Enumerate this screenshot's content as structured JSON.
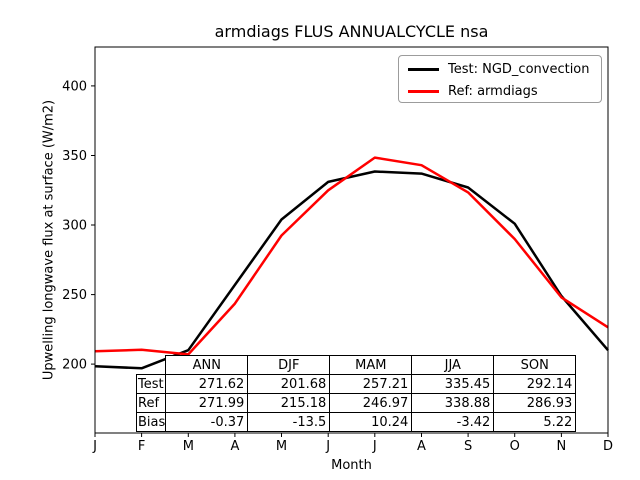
{
  "title": "armdiags FLUS ANNUALCYCLE nsa",
  "ylabel": "Upwelling longwave flux at surface (W/m2)",
  "xlabel": "Month",
  "legend": {
    "items": [
      {
        "label": "Test: NGD_convection",
        "color": "#000000"
      },
      {
        "label": "Ref: armdiags",
        "color": "#ff0000"
      }
    ]
  },
  "chart_data": {
    "type": "line",
    "title": "armdiags FLUS ANNUALCYCLE nsa",
    "xlabel": "Month",
    "ylabel": "Upwelling longwave flux at surface (W/m2)",
    "x_ticklabels": [
      "J",
      "F",
      "M",
      "A",
      "M",
      "J",
      "J",
      "A",
      "S",
      "O",
      "N",
      "D"
    ],
    "y_ticks": [
      200,
      250,
      300,
      350,
      400
    ],
    "ylim": [
      150.5,
      428
    ],
    "grid": false,
    "legend_position": "upper right",
    "series": [
      {
        "name": "Test: NGD_convection",
        "color": "#000000",
        "values": [
          198.5,
          197,
          210,
          257,
          304,
          331,
          338.5,
          337,
          327,
          301,
          249,
          210
        ]
      },
      {
        "name": "Ref: armdiags",
        "color": "#ff0000",
        "values": [
          209.3,
          210.3,
          207,
          243.5,
          292.5,
          325,
          348.5,
          343,
          323.5,
          290,
          248,
          226.5
        ]
      }
    ]
  },
  "table": {
    "columns": [
      "ANN",
      "DJF",
      "MAM",
      "JJA",
      "SON"
    ],
    "rows": [
      {
        "label": "Test",
        "values": [
          "271.62",
          "201.68",
          "257.21",
          "335.45",
          "292.14"
        ]
      },
      {
        "label": "Ref",
        "values": [
          "271.99",
          "215.18",
          "246.97",
          "338.88",
          "286.93"
        ]
      },
      {
        "label": "Bias",
        "values": [
          "-0.37",
          "-13.5",
          "10.24",
          "-3.42",
          "5.22"
        ]
      }
    ]
  }
}
